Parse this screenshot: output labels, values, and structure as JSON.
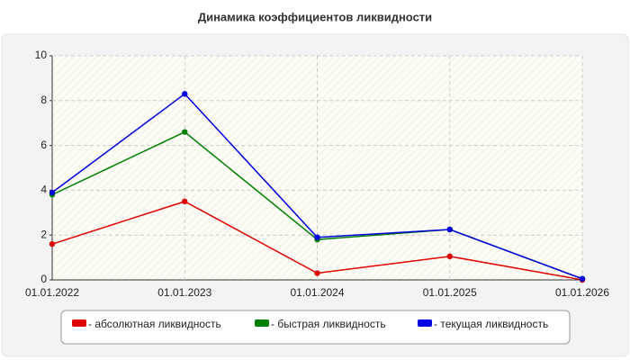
{
  "chart_data": {
    "type": "line",
    "title": "Динамика коэффициентов ликвидности",
    "categories": [
      "01.01.2022",
      "01.01.2023",
      "01.01.2024",
      "01.01.2025",
      "01.01.2026"
    ],
    "series": [
      {
        "name": "- абсолютная ликвидность",
        "color": "#e00000",
        "values": [
          1.6,
          3.5,
          0.3,
          1.05,
          0.0
        ]
      },
      {
        "name": "- быстрая ликвидность",
        "color": "#008000",
        "values": [
          3.8,
          6.6,
          1.8,
          2.25,
          0.05
        ]
      },
      {
        "name": "- текущая ликвидность",
        "color": "#0000e0",
        "values": [
          3.9,
          8.3,
          1.9,
          2.25,
          0.05
        ]
      }
    ],
    "ylim": [
      0,
      10
    ],
    "yticks": [
      0,
      2,
      4,
      6,
      8,
      10
    ],
    "grid": true,
    "legend": "bottom"
  }
}
